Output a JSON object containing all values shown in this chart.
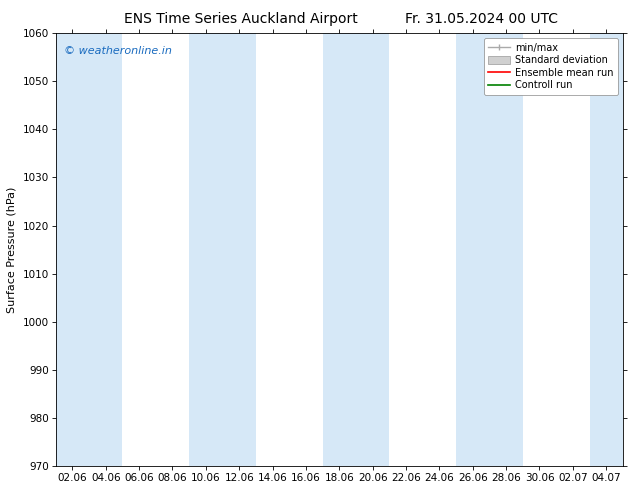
{
  "title": "ENS Time Series Auckland Airport",
  "title2": "Fr. 31.05.2024 00 UTC",
  "ylabel": "Surface Pressure (hPa)",
  "ylim": [
    970,
    1060
  ],
  "yticks": [
    970,
    980,
    990,
    1000,
    1010,
    1020,
    1030,
    1040,
    1050,
    1060
  ],
  "xtick_labels": [
    "02.06",
    "04.06",
    "06.06",
    "08.06",
    "10.06",
    "12.06",
    "14.06",
    "16.06",
    "18.06",
    "20.06",
    "22.06",
    "24.06",
    "26.06",
    "28.06",
    "30.06",
    "02.07",
    "04.07"
  ],
  "watermark": "© weatheronline.in",
  "watermark_color": "#1a6bbf",
  "background_color": "#ffffff",
  "plot_bg_color": "#ffffff",
  "band_color": "#d6e8f7",
  "legend_items": [
    "min/max",
    "Standard deviation",
    "Ensemble mean run",
    "Controll run"
  ],
  "legend_line_colors": [
    "#aaaaaa",
    "#cccccc",
    "#ff0000",
    "#008000"
  ],
  "title_fontsize": 10,
  "ylabel_fontsize": 8,
  "tick_fontsize": 7.5,
  "watermark_fontsize": 8,
  "legend_fontsize": 7
}
